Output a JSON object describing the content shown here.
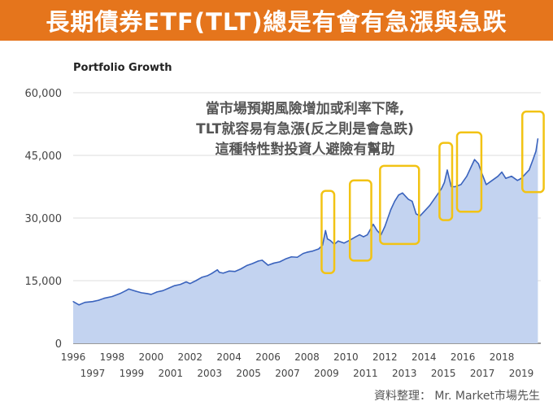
{
  "banner": {
    "title": "長期債券ETF(TLT)總是有會有急漲與急跌"
  },
  "source": "資料整理： Mr. Market市場先生",
  "colors": {
    "banner": "#e5751c",
    "line": "#3a63bd",
    "area": "#c3d3f0",
    "highlight": "#f2c314",
    "grid": "#dddddd"
  },
  "chart_data": {
    "type": "area",
    "title": "Portfolio Growth",
    "ylim": [
      0,
      60000
    ],
    "yticks": [
      0,
      15000,
      30000,
      45000,
      60000
    ],
    "ytick_labels": [
      "0",
      "15,000",
      "30,000",
      "45,000",
      "60,000"
    ],
    "xlim": [
      1996,
      2020
    ],
    "xticks_upper": [
      "1996",
      "1998",
      "2000",
      "2002",
      "2004",
      "2006",
      "2008",
      "2010",
      "2012",
      "2014",
      "2016",
      "2018"
    ],
    "xticks_lower": [
      "1997",
      "1999",
      "2001",
      "2003",
      "2005",
      "2007",
      "2009",
      "2011",
      "2013",
      "2015",
      "2017",
      "2019"
    ],
    "grid": true,
    "annotation": [
      "當市場預期風險增加或利率下降,",
      "TLT就容易有急漲(反之則是會急跌)",
      "這種特性對投資人避險有幫助"
    ],
    "series": [
      {
        "x": [
          1996.0,
          1996.3,
          1996.6,
          1997.0,
          1997.3,
          1997.6,
          1998.0,
          1998.4,
          1998.7,
          1998.85,
          1999.2,
          1999.5,
          1999.8,
          2000.0,
          2000.3,
          2000.6,
          2000.9,
          2001.2,
          2001.5,
          2001.8,
          2002.0,
          2002.3,
          2002.6,
          2002.9,
          2003.1,
          2003.4,
          2003.5,
          2003.7,
          2004.0,
          2004.3,
          2004.6,
          2004.9,
          2005.2,
          2005.5,
          2005.7,
          2006.0,
          2006.3,
          2006.6,
          2006.9,
          2007.2,
          2007.5,
          2007.8,
          2008.0,
          2008.3,
          2008.6,
          2008.8,
          2008.95,
          2009.05,
          2009.2,
          2009.4,
          2009.6,
          2009.9,
          2010.2,
          2010.5,
          2010.7,
          2010.9,
          2011.1,
          2011.4,
          2011.6,
          2011.8,
          2012.0,
          2012.3,
          2012.5,
          2012.7,
          2012.9,
          2013.2,
          2013.4,
          2013.6,
          2013.8,
          2014.0,
          2014.3,
          2014.6,
          2014.9,
          2015.05,
          2015.2,
          2015.4,
          2015.6,
          2015.9,
          2016.2,
          2016.4,
          2016.6,
          2016.8,
          2016.95,
          2017.2,
          2017.5,
          2017.8,
          2018.0,
          2018.2,
          2018.5,
          2018.8,
          2019.0,
          2019.2,
          2019.4,
          2019.6,
          2019.75,
          2019.85
        ],
        "y": [
          10000,
          9200,
          9800,
          10000,
          10300,
          10800,
          11200,
          11900,
          12600,
          13000,
          12500,
          12100,
          11900,
          11700,
          12300,
          12600,
          13200,
          13800,
          14100,
          14700,
          14300,
          15000,
          15800,
          16200,
          16700,
          17600,
          17000,
          16800,
          17300,
          17200,
          17800,
          18600,
          19100,
          19700,
          19900,
          18700,
          19200,
          19500,
          20200,
          20700,
          20600,
          21500,
          21800,
          22100,
          22600,
          23500,
          27000,
          25000,
          24600,
          23700,
          24500,
          24000,
          24700,
          25500,
          26000,
          25500,
          26000,
          28500,
          27000,
          26000,
          28000,
          32000,
          34000,
          35500,
          36000,
          34500,
          34000,
          31000,
          30500,
          31500,
          33000,
          35000,
          37000,
          38500,
          41500,
          37500,
          37500,
          38000,
          40000,
          42000,
          44000,
          43000,
          41000,
          38000,
          39000,
          40000,
          41000,
          39500,
          40000,
          39000,
          39500,
          40500,
          41500,
          44000,
          46000,
          49000
        ]
      }
    ],
    "highlights": [
      {
        "x": [
          2008.75,
          2009.4
        ],
        "y": [
          16800,
          36500
        ]
      },
      {
        "x": [
          2010.2,
          2011.3
        ],
        "y": [
          19800,
          39000
        ]
      },
      {
        "x": [
          2011.75,
          2013.75
        ],
        "y": [
          23800,
          42500
        ]
      },
      {
        "x": [
          2014.8,
          2015.45
        ],
        "y": [
          29500,
          48000
        ]
      },
      {
        "x": [
          2015.7,
          2016.95
        ],
        "y": [
          31500,
          50500
        ]
      },
      {
        "x": [
          2019.05,
          2020.15
        ],
        "y": [
          36200,
          55500
        ]
      }
    ]
  }
}
